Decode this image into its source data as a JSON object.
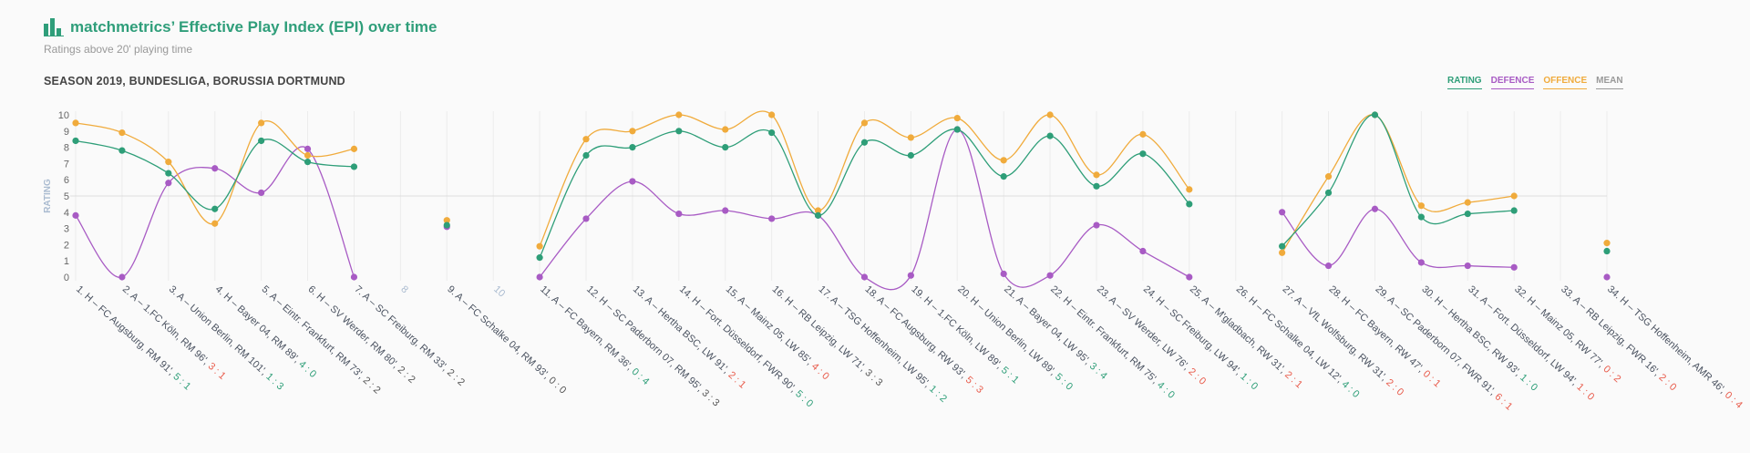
{
  "header": {
    "title": "matchmetrics’ Effective Play Index (EPI) over time",
    "subtitle": "Ratings above 20' playing time",
    "season": "SEASON 2019, BUNDESLIGA, BORUSSIA DORTMUND",
    "logo_icon": "bar-chart-icon"
  },
  "legend": {
    "rating": "RATING",
    "defence": "DEFENCE",
    "offence": "OFFENCE",
    "mean": "MEAN"
  },
  "colors": {
    "rating": "#2e9e78",
    "defence": "#a85bc4",
    "offence": "#f0ab3c",
    "mean": "#999999",
    "axis_label": "#aabbd0",
    "win": "#2e9e78",
    "loss": "#e85a4a",
    "draw": "#555555",
    "brand": "#2f9e7a"
  },
  "chart_data": {
    "type": "line",
    "ylabel": "RATING",
    "ylim": [
      0,
      10
    ],
    "yticks": [
      0,
      1,
      2,
      3,
      4,
      5,
      6,
      7,
      8,
      9,
      10
    ],
    "mean": 5,
    "grid": true,
    "legend_position": "top-right",
    "matches": [
      {
        "label": "1. H – FC Augsburg, RM 91', ",
        "score": "5 : 1",
        "result": "win"
      },
      {
        "label": "2. A – 1.FC Köln, RM 96', ",
        "score": "3 : 1",
        "result": "loss"
      },
      {
        "label": "3. A – Union Berlin, RM 101', ",
        "score": "1 : 3",
        "result": "win"
      },
      {
        "label": "4. H – Bayer 04, RM 89', ",
        "score": "4 : 0",
        "result": "win"
      },
      {
        "label": "5. A – Eintr. Frankfurt, RM 73', ",
        "score": "2 : 2",
        "result": "draw"
      },
      {
        "label": "6. H – SV Werder, RM 80', ",
        "score": "2 : 2",
        "result": "draw"
      },
      {
        "label": "7. A – SC Freiburg, RM 33', ",
        "score": "2 : 2",
        "result": "draw"
      },
      {
        "label": "8",
        "score": "",
        "result": "none"
      },
      {
        "label": "9. A – FC Schalke 04, RM 93', ",
        "score": "0 : 0",
        "result": "draw"
      },
      {
        "label": "10",
        "score": "",
        "result": "none"
      },
      {
        "label": "11. A – FC Bayern, RM 36', ",
        "score": "0 : 4",
        "result": "win"
      },
      {
        "label": "12. H – SC Paderborn 07, RM 95', ",
        "score": "3 : 3",
        "result": "draw"
      },
      {
        "label": "13. A – Hertha BSC, LW 91', ",
        "score": "2 : 1",
        "result": "loss"
      },
      {
        "label": "14. H – Fort. Düsseldorf, FWR 90', ",
        "score": "5 : 0",
        "result": "win"
      },
      {
        "label": "15. A – Mainz 05, LW 85', ",
        "score": "4 : 0",
        "result": "loss"
      },
      {
        "label": "16. H – RB Leipzig, LW 71', ",
        "score": "3 : 3",
        "result": "draw"
      },
      {
        "label": "17. A – TSG Hoffenheim, LW 95', ",
        "score": "1 : 2",
        "result": "win"
      },
      {
        "label": "18. A – FC Augsburg, RW 93', ",
        "score": "5 : 3",
        "result": "loss"
      },
      {
        "label": "19. H – 1.FC Köln, LW 89', ",
        "score": "5 : 1",
        "result": "win"
      },
      {
        "label": "20. H – Union Berlin, LW 89', ",
        "score": "5 : 0",
        "result": "win"
      },
      {
        "label": "21. A – Bayer 04, LW 95', ",
        "score": "3 : 4",
        "result": "win"
      },
      {
        "label": "22. H – Eintr. Frankfurt, RM 75', ",
        "score": "4 : 0",
        "result": "win"
      },
      {
        "label": "23. A – SV Werder, LW 76', ",
        "score": "2 : 0",
        "result": "loss"
      },
      {
        "label": "24. H – SC Freiburg, LW 94', ",
        "score": "1 : 0",
        "result": "win"
      },
      {
        "label": "25. A – M'gladbach, RW 31', ",
        "score": "2 : 1",
        "result": "loss"
      },
      {
        "label": "26. H – FC Schalke 04, LW 12', ",
        "score": "4 : 0",
        "result": "win"
      },
      {
        "label": "27. A – VfL Wolfsburg, RW 31', ",
        "score": "2 : 0",
        "result": "loss"
      },
      {
        "label": "28. H – FC Bayern, RW 47', ",
        "score": "0 : 1",
        "result": "loss"
      },
      {
        "label": "29. A – SC Paderborn 07, FWR 91', ",
        "score": "6 : 1",
        "result": "loss"
      },
      {
        "label": "30. H – Hertha BSC, RW 93', ",
        "score": "1 : 0",
        "result": "win"
      },
      {
        "label": "31. A – Fort. Düsseldorf, LW 94', ",
        "score": "1 : 0",
        "result": "loss"
      },
      {
        "label": "32. H – Mainz 05, RW 77', ",
        "score": "0 : 2",
        "result": "loss"
      },
      {
        "label": "33. A – RB Leipzig, FWR 16', ",
        "score": "2 : 0",
        "result": "loss"
      },
      {
        "label": "34. H – TSG Hoffenheim, AMR 46', ",
        "score": "0 : 4",
        "result": "loss"
      }
    ],
    "series": [
      {
        "name": "RATING",
        "values": [
          8.4,
          7.8,
          6.4,
          4.2,
          8.4,
          7.1,
          6.8,
          null,
          3.2,
          null,
          1.2,
          7.5,
          8.0,
          9.0,
          8.0,
          8.9,
          3.8,
          8.3,
          7.5,
          9.1,
          6.2,
          8.7,
          5.6,
          7.6,
          4.5,
          null,
          1.9,
          5.2,
          10.0,
          3.7,
          3.9,
          4.1,
          null,
          1.6
        ]
      },
      {
        "name": "DEFENCE",
        "values": [
          3.8,
          0.0,
          5.8,
          6.7,
          5.2,
          7.9,
          0.0,
          null,
          3.1,
          null,
          0.0,
          3.6,
          5.9,
          3.9,
          4.1,
          3.6,
          3.8,
          0.0,
          0.1,
          9.1,
          0.2,
          0.1,
          3.2,
          1.6,
          0.0,
          null,
          4.0,
          0.7,
          4.2,
          0.9,
          0.7,
          0.6,
          null,
          0.0
        ]
      },
      {
        "name": "OFFENCE",
        "values": [
          9.5,
          8.9,
          7.1,
          3.3,
          9.5,
          7.5,
          7.9,
          null,
          3.5,
          null,
          1.9,
          8.5,
          9.0,
          10.0,
          9.1,
          10.0,
          4.1,
          9.5,
          8.6,
          9.8,
          7.2,
          10.0,
          6.3,
          8.8,
          5.4,
          null,
          1.5,
          6.2,
          10.0,
          4.4,
          4.6,
          5.0,
          null,
          2.1
        ]
      }
    ]
  }
}
